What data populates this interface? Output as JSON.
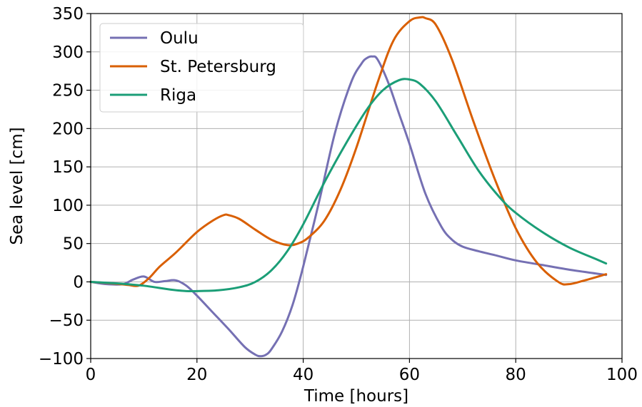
{
  "chart_data": {
    "type": "line",
    "title": "",
    "xlabel": "Time [hours]",
    "ylabel": "Sea level [cm]",
    "xlim": [
      0,
      100
    ],
    "ylim": [
      -100,
      350
    ],
    "xticks": [
      0,
      20,
      40,
      60,
      80,
      100
    ],
    "xtick_labels": [
      "0",
      "20",
      "40",
      "60",
      "80",
      "100"
    ],
    "yticks": [
      -100,
      -50,
      0,
      50,
      100,
      150,
      200,
      250,
      300,
      350
    ],
    "ytick_labels": [
      "−100",
      "−50",
      "0",
      "50",
      "100",
      "150",
      "200",
      "250",
      "300",
      "350"
    ],
    "grid": true,
    "legend_position": "top-left",
    "series": [
      {
        "name": "Oulu",
        "color": "#7570b3",
        "x": [
          0,
          3,
          6,
          8,
          10,
          12,
          14,
          16,
          18,
          20,
          23,
          26,
          29,
          31,
          32,
          33,
          34,
          36,
          38,
          40,
          43,
          46,
          49,
          51,
          52,
          53,
          54,
          56,
          58,
          60,
          63,
          66,
          68,
          70,
          73,
          76,
          80,
          85,
          90,
          95,
          97
        ],
        "y": [
          0,
          -3,
          -3,
          3,
          7,
          0,
          1,
          2,
          -5,
          -18,
          -40,
          -62,
          -85,
          -95,
          -97,
          -95,
          -88,
          -65,
          -30,
          20,
          105,
          195,
          260,
          285,
          292,
          294,
          290,
          260,
          220,
          180,
          115,
          72,
          55,
          46,
          40,
          35,
          28,
          22,
          16,
          11,
          9
        ]
      },
      {
        "name": "St. Petersburg",
        "color": "#d95f02",
        "x": [
          0,
          4,
          7,
          9,
          11,
          13,
          16,
          20,
          23,
          25,
          26,
          28,
          31,
          34,
          37,
          39,
          41,
          44,
          47,
          50,
          54,
          57,
          60,
          62,
          63,
          65,
          68,
          72,
          76,
          80,
          84,
          88,
          90,
          93,
          97
        ],
        "y": [
          0,
          -2,
          -4,
          -5,
          5,
          20,
          38,
          65,
          80,
          87,
          87,
          82,
          68,
          55,
          48,
          50,
          58,
          80,
          120,
          175,
          260,
          315,
          340,
          345,
          344,
          335,
          290,
          210,
          135,
          70,
          25,
          0,
          -3,
          2,
          10
        ]
      },
      {
        "name": "Riga",
        "color": "#1b9e77",
        "x": [
          0,
          5,
          10,
          15,
          18,
          20,
          24,
          28,
          31,
          34,
          37,
          40,
          44,
          48,
          52,
          55,
          58,
          60,
          62,
          65,
          69,
          73,
          77,
          80,
          85,
          90,
          95,
          97
        ],
        "y": [
          0,
          -2,
          -5,
          -10,
          -12,
          -12,
          -11,
          -7,
          0,
          15,
          40,
          75,
          130,
          180,
          225,
          250,
          263,
          264,
          258,
          235,
          190,
          145,
          110,
          90,
          65,
          45,
          30,
          24
        ]
      }
    ]
  }
}
